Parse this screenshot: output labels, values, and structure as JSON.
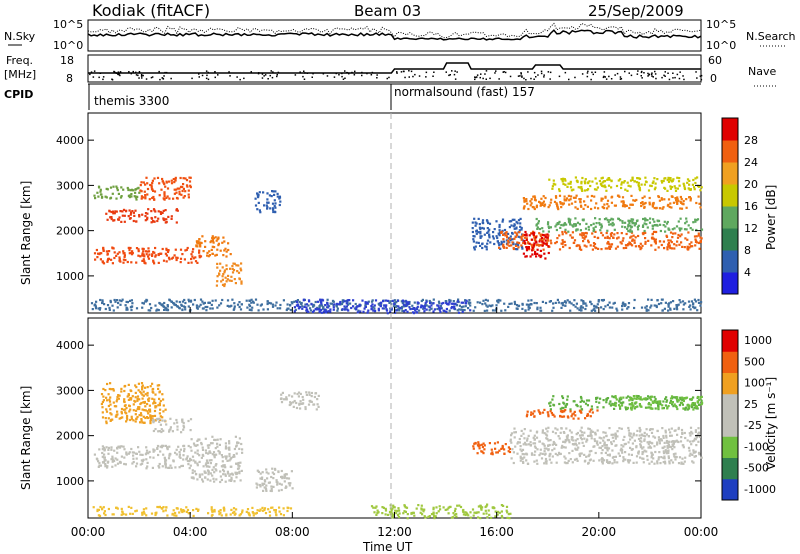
{
  "header": {
    "station": "Kodiak (fitACF)",
    "beam": "Beam 03",
    "date": "25/Sep/2009"
  },
  "top_panels": {
    "nsky_label": "N.Sky",
    "nsky_ticks": [
      "10^5",
      "10^0"
    ],
    "nsearch_label": "N.Search",
    "nsearch_ticks": [
      "10^5",
      "10^0"
    ],
    "freq_label": "Freq.",
    "freq_unit": "[MHz]",
    "freq_ticks": [
      "18",
      "8"
    ],
    "nave_label": "Nave",
    "nave_ticks": [
      "60",
      "0"
    ],
    "cpid_label": "CPID",
    "cpid_segments": [
      {
        "name": "themis 3300",
        "start_hour": 0
      },
      {
        "name": "normalsound (fast) 157",
        "start_hour": 12
      }
    ]
  },
  "x_axis": {
    "label": "Time UT",
    "ticks": [
      "00:00",
      "04:00",
      "08:00",
      "12:00",
      "16:00",
      "20:00",
      "00:00"
    ],
    "tick_hours": [
      0,
      4,
      8,
      12,
      16,
      20,
      24
    ]
  },
  "y_axis": {
    "label": "Slant Range [km]",
    "ticks": [
      "1000",
      "2000",
      "3000",
      "4000"
    ],
    "tick_values": [
      1000,
      2000,
      3000,
      4000
    ],
    "range": [
      180,
      4600
    ]
  },
  "power_colorbar": {
    "label": "Power [dB]",
    "ticks": [
      "4",
      "8",
      "12",
      "16",
      "20",
      "24",
      "28"
    ],
    "colors": [
      "#1f1fe0",
      "#2f5fb0",
      "#2f7f4f",
      "#5fa85f",
      "#c8c800",
      "#f0a020",
      "#f06010",
      "#e00000"
    ]
  },
  "velocity_colorbar": {
    "label": "Velocity [m s⁻¹]",
    "ticks": [
      "1000",
      "500",
      "100",
      "25",
      "-25",
      "-100",
      "-500",
      "-1000"
    ],
    "colors": [
      "#1f3fc0",
      "#2f7f4f",
      "#70c040",
      "#c0c0b8",
      "#c0c0b8",
      "#f0a020",
      "#f06010",
      "#e00000"
    ]
  },
  "chart_data": {
    "type": "heatmap",
    "x_range_hours": [
      0,
      24
    ],
    "y_range_km": [
      180,
      4600
    ],
    "power_regions": [
      {
        "t0": 0.2,
        "t1": 4.5,
        "r0": 1300,
        "r1": 1650,
        "color": "#f04a10"
      },
      {
        "t0": 4.2,
        "t1": 5.6,
        "r0": 1450,
        "r1": 1900,
        "color": "#f07a10"
      },
      {
        "t0": 5.0,
        "t1": 6.0,
        "r0": 800,
        "r1": 1300,
        "color": "#f08a20"
      },
      {
        "t0": 0.6,
        "t1": 3.5,
        "r0": 2200,
        "r1": 2500,
        "color": "#e83a10"
      },
      {
        "t0": 2.0,
        "t1": 4.0,
        "r0": 2700,
        "r1": 3200,
        "color": "#f05010"
      },
      {
        "t0": 0.2,
        "t1": 2.0,
        "r0": 2700,
        "r1": 3000,
        "color": "#6fa040"
      },
      {
        "t0": 6.5,
        "t1": 7.5,
        "r0": 2400,
        "r1": 2900,
        "color": "#2f5fb0"
      },
      {
        "t0": 0.1,
        "t1": 24.0,
        "r0": 250,
        "r1": 500,
        "color": "#3f6f9f"
      },
      {
        "t0": 8.0,
        "t1": 15.0,
        "r0": 200,
        "r1": 500,
        "color": "#2f3fd0"
      },
      {
        "t0": 15.0,
        "t1": 17.0,
        "r0": 1600,
        "r1": 2300,
        "color": "#2f5fb0"
      },
      {
        "t0": 16.0,
        "t1": 24.0,
        "r0": 1600,
        "r1": 2000,
        "color": "#f06010"
      },
      {
        "t0": 17.0,
        "t1": 24.0,
        "r0": 2500,
        "r1": 2800,
        "color": "#f07a10"
      },
      {
        "t0": 17.5,
        "t1": 24.0,
        "r0": 2000,
        "r1": 2300,
        "color": "#5fa85f"
      },
      {
        "t0": 17.0,
        "t1": 18.0,
        "r0": 1400,
        "r1": 2000,
        "color": "#e00000"
      },
      {
        "t0": 18.0,
        "t1": 24.0,
        "r0": 2900,
        "r1": 3200,
        "color": "#c8c800"
      }
    ],
    "velocity_regions": [
      {
        "t0": 0.2,
        "t1": 4.0,
        "r0": 1300,
        "r1": 1800,
        "color": "#c0c0b8"
      },
      {
        "t0": 4.0,
        "t1": 6.0,
        "r0": 1000,
        "r1": 2000,
        "color": "#c0c0b8"
      },
      {
        "t0": 0.5,
        "t1": 3.0,
        "r0": 2300,
        "r1": 3200,
        "color": "#f0a020"
      },
      {
        "t0": 2.5,
        "t1": 4.0,
        "r0": 2100,
        "r1": 2400,
        "color": "#c0c0b8"
      },
      {
        "t0": 6.5,
        "t1": 8.0,
        "r0": 800,
        "r1": 1300,
        "color": "#c0c0b8"
      },
      {
        "t0": 7.5,
        "t1": 9.0,
        "r0": 2600,
        "r1": 3000,
        "color": "#c0c0b8"
      },
      {
        "t0": 0.1,
        "t1": 8.0,
        "r0": 250,
        "r1": 450,
        "color": "#f0c030"
      },
      {
        "t0": 11.0,
        "t1": 16.5,
        "r0": 200,
        "r1": 500,
        "color": "#a0c840"
      },
      {
        "t0": 15.0,
        "t1": 16.5,
        "r0": 1600,
        "r1": 1900,
        "color": "#f06010"
      },
      {
        "t0": 16.5,
        "t1": 24.0,
        "r0": 1400,
        "r1": 2200,
        "color": "#c0c0b8"
      },
      {
        "t0": 18.0,
        "t1": 24.0,
        "r0": 2600,
        "r1": 2900,
        "color": "#5fb040"
      },
      {
        "t0": 17.0,
        "t1": 20.0,
        "r0": 2400,
        "r1": 2600,
        "color": "#f06010"
      },
      {
        "t0": 20.5,
        "t1": 24.0,
        "r0": 2600,
        "r1": 2900,
        "color": "#70c040"
      }
    ]
  }
}
